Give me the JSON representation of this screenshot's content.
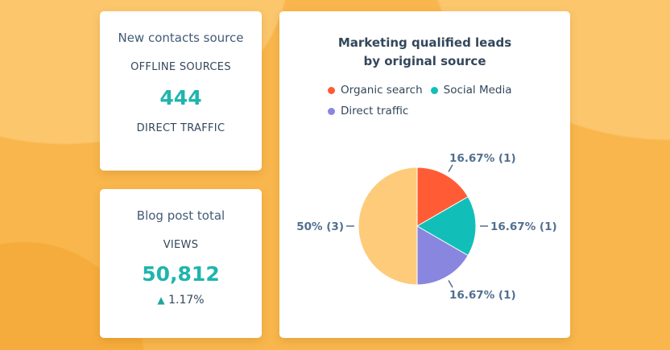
{
  "contacts_card": {
    "title": "New contacts source",
    "label_top": "OFFLINE SOURCES",
    "value": "444",
    "label_bottom": "DIRECT TRAFFIC"
  },
  "blog_card": {
    "title": "Blog post total",
    "label": "VIEWS",
    "value": "50,812",
    "change": "1.17%",
    "change_icon": "triangle-up-icon"
  },
  "colors": {
    "accent": "#1fb5ad",
    "background": "#f8b64c"
  },
  "chart_data": {
    "type": "pie",
    "title": "Marketing qualified leads by original source",
    "legend": [
      "Organic search",
      "Social Media",
      "Direct traffic"
    ],
    "legend_placement": "top",
    "slices": [
      {
        "name": "Organic search",
        "value": 1,
        "label": "16.67% (1)",
        "color": "#ff5c35"
      },
      {
        "name": "Social Media",
        "value": 1,
        "label": "16.67% (1)",
        "color": "#12bfb8"
      },
      {
        "name": "Direct traffic",
        "value": 1,
        "label": "16.67% (1)",
        "color": "#8986e0"
      },
      {
        "value": 3,
        "label": "50% (3)",
        "color": "#fdcb7a"
      }
    ]
  }
}
